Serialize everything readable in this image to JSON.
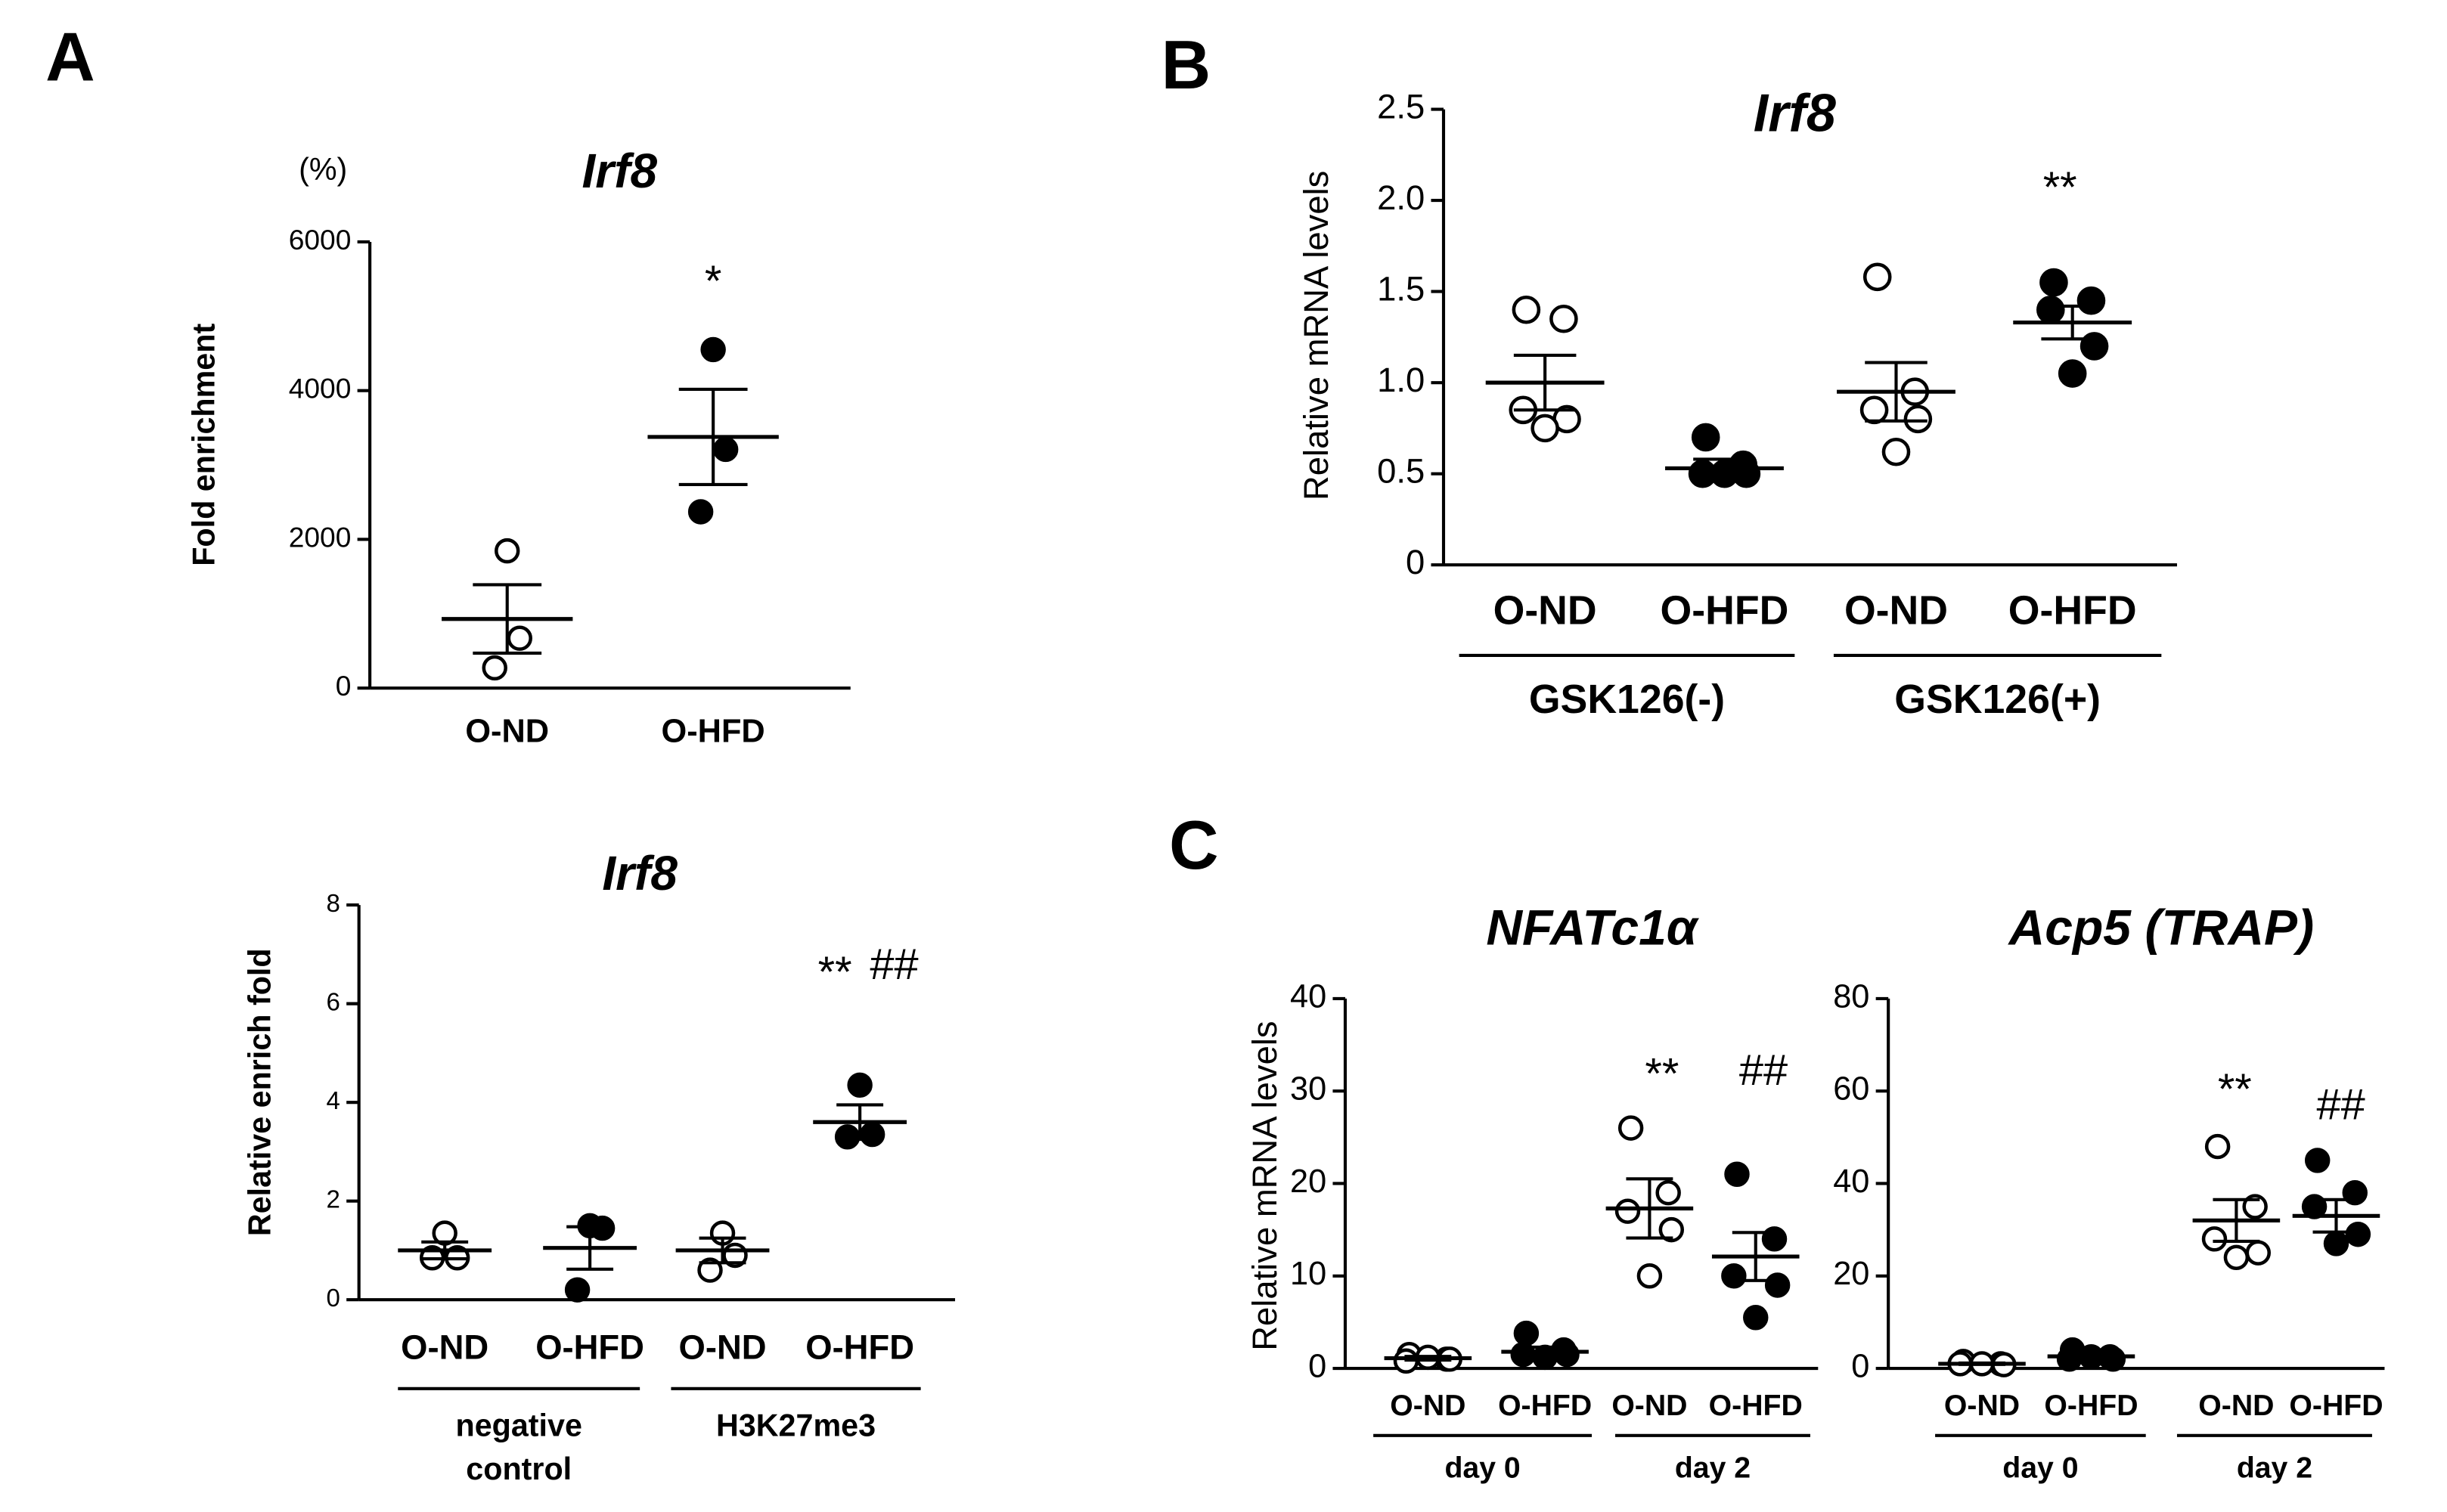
{
  "chart_data": [
    {
      "type": "dotplot",
      "panel": "A",
      "title": "Irf8",
      "unit_label": "(%)",
      "ylabel": "Fold enrichment",
      "ylim": [
        0,
        6000
      ],
      "yticks": [
        0,
        2000,
        4000,
        6000
      ],
      "categories": [
        "O-ND",
        "O-HFD"
      ],
      "filled": [
        false,
        true
      ],
      "points": [
        [
          1846,
          671,
          273
        ],
        [
          4552,
          3210,
          2371
        ]
      ],
      "means": [
        930,
        3378
      ],
      "sems": [
        460,
        640
      ],
      "groups": [],
      "annotations": [
        "*"
      ]
    },
    {
      "type": "dotplot",
      "title": "Irf8",
      "ylabel": "Relative enrich fold",
      "ylim": [
        0,
        8
      ],
      "yticks": [
        0,
        2,
        4,
        6,
        8
      ],
      "categories": [
        "O-ND",
        "O-HFD",
        "O-ND",
        "O-HFD"
      ],
      "filled": [
        false,
        true,
        false,
        true
      ],
      "points": [
        [
          1.35,
          0.85,
          0.85
        ],
        [
          1.5,
          1.45,
          0.2
        ],
        [
          1.35,
          0.9,
          0.6
        ],
        [
          4.35,
          3.35,
          3.3
        ]
      ],
      "means": [
        1.0,
        1.05,
        1.0,
        3.6
      ],
      "sems": [
        0.17,
        0.43,
        0.25,
        0.35
      ],
      "groups": [
        [
          "negative",
          "control"
        ],
        [
          "H3K27me3"
        ]
      ],
      "annotations": [
        "**",
        "##"
      ]
    },
    {
      "type": "dotplot",
      "panel": "B",
      "title": "Irf8",
      "ylabel": "Relative mRNA levels",
      "ylim": [
        0,
        2.5
      ],
      "yticks": [
        0,
        0.5,
        {
          "value": 1,
          "label": "1.0"
        },
        1.5,
        {
          "value": 2,
          "label": "2.0"
        },
        2.5
      ],
      "categories": [
        "O-ND",
        "O-HFD",
        "O-ND",
        "O-HFD"
      ],
      "filled": [
        false,
        true,
        false,
        true
      ],
      "points": [
        [
          1.4,
          1.35,
          0.85,
          0.8,
          0.75
        ],
        [
          0.7,
          0.55,
          0.5,
          0.5,
          0.5
        ],
        [
          1.58,
          0.95,
          0.85,
          0.8,
          0.62
        ],
        [
          1.55,
          1.45,
          1.4,
          1.2,
          1.05
        ]
      ],
      "means": [
        1.0,
        0.53,
        0.95,
        1.33
      ],
      "sems": [
        0.15,
        0.05,
        0.16,
        0.09
      ],
      "groups": [
        [
          "GSK126(-)"
        ],
        [
          "GSK126(+)"
        ]
      ],
      "annotations": [
        "**"
      ]
    },
    {
      "type": "dotplot",
      "panel": "C",
      "title": "NFATc1α",
      "ylabel": "Relative mRNA levels",
      "ylim": [
        0,
        40
      ],
      "yticks": [
        0,
        10,
        20,
        30,
        40
      ],
      "categories": [
        "O-ND",
        "O-HFD",
        "O-ND",
        "O-HFD"
      ],
      "filled": [
        false,
        true,
        false,
        true
      ],
      "points": [
        [
          1.5,
          1,
          0.8,
          1,
          1.2
        ],
        [
          3.8,
          2,
          1.5,
          1.5,
          1.2
        ],
        [
          26,
          19,
          17,
          15,
          10
        ],
        [
          21,
          14,
          10,
          9,
          5.5
        ]
      ],
      "means": [
        1.1,
        1.8,
        17.3,
        12.1
      ],
      "sems": [
        0.2,
        0.5,
        3.2,
        2.6
      ],
      "groups": [
        [
          "day 0"
        ],
        [
          "day 2"
        ]
      ],
      "annotations": [
        "**",
        "##"
      ]
    },
    {
      "type": "dotplot",
      "title": "Acp5 (TRAP)",
      "ylim": [
        0,
        80
      ],
      "yticks": [
        0,
        20,
        40,
        60,
        80
      ],
      "categories": [
        "O-ND",
        "O-HFD",
        "O-ND",
        "O-HFD"
      ],
      "filled": [
        false,
        true,
        false,
        true
      ],
      "points": [
        [
          1.5,
          1,
          1,
          0.8,
          1
        ],
        [
          4,
          2.5,
          2,
          2,
          2.5
        ],
        [
          48,
          35,
          28,
          25,
          24
        ],
        [
          45,
          38,
          35,
          29,
          27
        ]
      ],
      "means": [
        1,
        2.6,
        32,
        33
      ],
      "sems": [
        0.15,
        0.4,
        4.5,
        3.5
      ],
      "groups": [
        [
          "day 0"
        ],
        [
          "day 2"
        ]
      ],
      "annotations": [
        "**",
        "##"
      ]
    }
  ]
}
